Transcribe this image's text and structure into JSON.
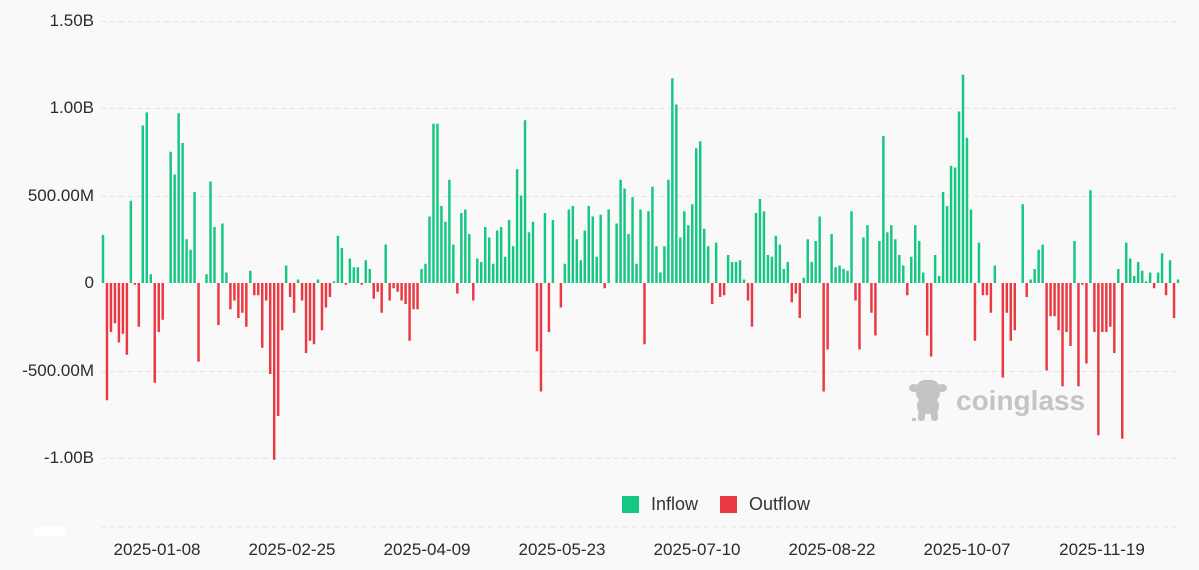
{
  "chart_data": {
    "type": "bar",
    "title": "",
    "xlabel": "",
    "ylabel": "",
    "ylim": [
      -1300000000,
      1500000000
    ],
    "grid": true,
    "legend_position": "bottom-center",
    "y_ticks": [
      "1.50B",
      "1.00B",
      "500.00M",
      "0",
      "-500.00M",
      "-1.00B"
    ],
    "y_tick_values": [
      1500,
      1000,
      500,
      0,
      -500,
      -1000
    ],
    "x_tick_labels": [
      "2025-01-08",
      "2025-02-25",
      "2025-04-09",
      "2025-05-23",
      "2025-07-10",
      "2025-08-22",
      "2025-10-07",
      "2025-11-19"
    ],
    "x_tick_bar_index": [
      13,
      45,
      77,
      109,
      141,
      173,
      205,
      237
    ],
    "unit": "millions USD (net daily flow)",
    "series": [
      {
        "name": "Inflow",
        "color": "#16c784"
      },
      {
        "name": "Outflow",
        "color": "#ea3943"
      }
    ],
    "values": [
      275,
      -670,
      -280,
      -230,
      -340,
      -290,
      -410,
      470,
      -10,
      -250,
      900,
      975,
      50,
      -570,
      -280,
      -210,
      0,
      750,
      620,
      970,
      800,
      250,
      190,
      520,
      -450,
      0,
      50,
      580,
      320,
      -240,
      340,
      60,
      -150,
      -100,
      -200,
      -170,
      -250,
      70,
      -70,
      -70,
      -370,
      -100,
      -520,
      -1010,
      -760,
      -270,
      100,
      -80,
      -170,
      20,
      -100,
      -400,
      -330,
      -350,
      20,
      -270,
      -140,
      -80,
      10,
      270,
      200,
      -10,
      140,
      90,
      90,
      -10,
      130,
      80,
      -90,
      -50,
      -170,
      220,
      -100,
      -30,
      -50,
      -100,
      -120,
      -330,
      -150,
      -150,
      80,
      110,
      380,
      910,
      910,
      440,
      350,
      590,
      220,
      -60,
      400,
      420,
      280,
      -100,
      140,
      120,
      320,
      260,
      110,
      300,
      320,
      150,
      360,
      210,
      650,
      500,
      930,
      290,
      350,
      -390,
      -620,
      400,
      -280,
      360,
      0,
      -140,
      110,
      420,
      440,
      250,
      130,
      300,
      440,
      380,
      150,
      390,
      -30,
      420,
      0,
      340,
      590,
      540,
      280,
      490,
      110,
      420,
      -350,
      410,
      550,
      210,
      60,
      210,
      590,
      1170,
      1020,
      260,
      410,
      330,
      450,
      770,
      810,
      310,
      210,
      -120,
      230,
      -80,
      -70,
      160,
      120,
      120,
      130,
      20,
      -100,
      -250,
      400,
      480,
      410,
      160,
      150,
      270,
      220,
      80,
      120,
      -110,
      -60,
      -200,
      30,
      250,
      120,
      240,
      380,
      -620,
      -380,
      280,
      90,
      100,
      80,
      70,
      410,
      -100,
      -380,
      260,
      330,
      -170,
      -300,
      240,
      840,
      290,
      330,
      250,
      160,
      100,
      -70,
      150,
      330,
      240,
      60,
      -300,
      -420,
      160,
      40,
      520,
      440,
      670,
      660,
      980,
      1190,
      830,
      420,
      -330,
      230,
      -70,
      -70,
      -170,
      100,
      0,
      -540,
      -170,
      -330,
      -270,
      0,
      450,
      -80,
      20,
      80,
      190,
      220,
      -500,
      -190,
      -190,
      -270,
      -590,
      -280,
      -360,
      240,
      -590,
      -10,
      -460,
      530,
      -280,
      -870,
      -280,
      -280,
      -250,
      -400,
      80,
      -890,
      230,
      140,
      40,
      120,
      70,
      10,
      60,
      -30,
      60,
      170,
      -70,
      130,
      -200,
      20
    ]
  },
  "legend": {
    "inflow_label": "Inflow",
    "outflow_label": "Outflow",
    "inflow_color": "#16c784",
    "outflow_color": "#ea3943"
  },
  "watermark": {
    "text": "coinglass",
    "icon": "coinglass-cow-logo-icon"
  }
}
